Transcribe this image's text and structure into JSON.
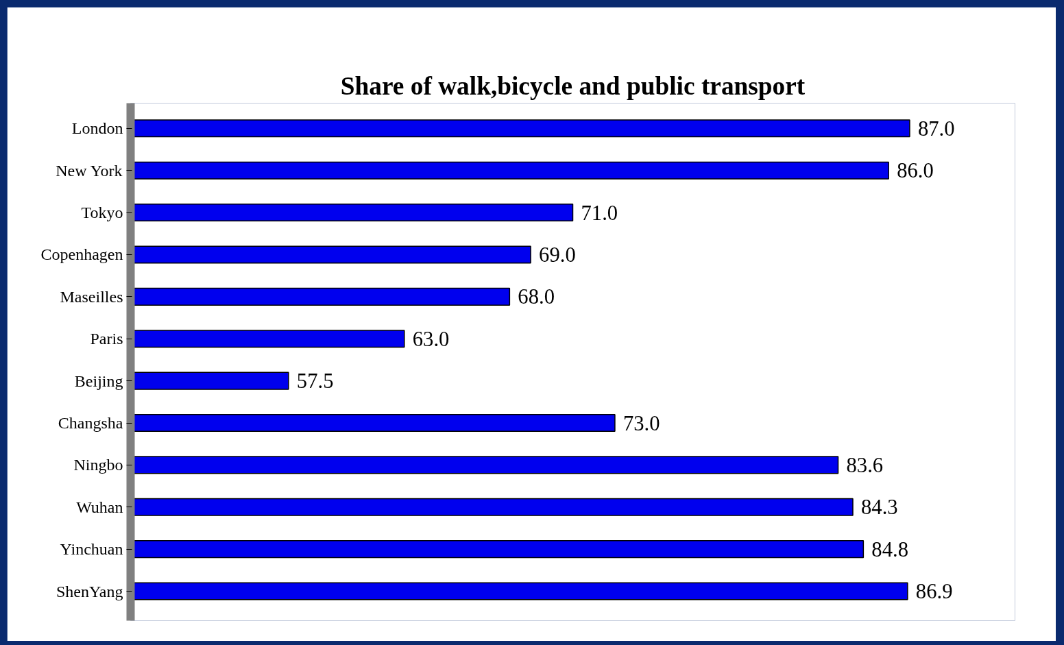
{
  "chart_data": {
    "type": "bar",
    "orientation": "horizontal",
    "title": "Share of walk,bicycle and public transport",
    "categories": [
      "London",
      "New York",
      "Tokyo",
      "Copenhagen",
      "Maseilles",
      "Paris",
      "Beijing",
      "Changsha",
      "Ningbo",
      "Wuhan",
      "Yinchuan",
      "ShenYang"
    ],
    "values": [
      87.0,
      86.0,
      71.0,
      69.0,
      68.0,
      63.0,
      57.5,
      73.0,
      83.6,
      84.3,
      84.8,
      86.9
    ],
    "value_labels": [
      "87.0",
      "86.0",
      "71.0",
      "69.0",
      "68.0",
      "63.0",
      "57.5",
      "73.0",
      "83.6",
      "84.3",
      "84.8",
      "86.9"
    ],
    "color": "#0000ee",
    "xlim": [
      50,
      92
    ],
    "tick_labels": "y",
    "grid": false
  }
}
